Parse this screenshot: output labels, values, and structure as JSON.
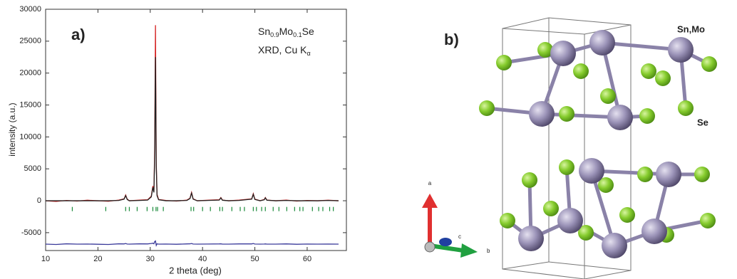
{
  "chart_data": {
    "type": "line",
    "panel_label": "a)",
    "xlabel": "2 theta (deg)",
    "ylabel": "intensity (a.u.)",
    "annotation_lines": [
      [
        {
          "text": "Sn"
        },
        {
          "text": "0.9",
          "sub": true
        },
        {
          "text": "Mo"
        },
        {
          "text": "0.1",
          "sub": true
        },
        {
          "text": "Se"
        }
      ],
      [
        {
          "text": "XRD, Cu K"
        },
        {
          "text": "α",
          "sub": true
        }
      ]
    ],
    "xlim": [
      10,
      67.5
    ],
    "ylim": [
      -7800,
      30000
    ],
    "xticks": [
      10,
      20,
      30,
      40,
      50,
      60
    ],
    "yticks": [
      -5000,
      0,
      5000,
      10000,
      15000,
      20000,
      25000,
      30000
    ],
    "grid": false,
    "x": [
      10,
      12,
      14,
      16,
      18,
      20,
      22,
      24,
      25,
      25.3,
      25.6,
      26,
      28,
      29.5,
      30.2,
      30.5,
      30.7,
      30.85,
      31.0,
      31.15,
      31.3,
      31.6,
      33,
      35,
      37,
      37.6,
      37.9,
      38.2,
      39,
      41,
      43.2,
      43.5,
      43.8,
      45,
      47,
      49.4,
      49.7,
      50,
      51,
      51.8,
      52,
      52.3,
      54,
      56,
      58,
      60,
      62,
      64,
      66
    ],
    "series": [
      {
        "color": "#d42020",
        "values": [
          0,
          -100,
          50,
          -50,
          80,
          0,
          -80,
          100,
          300,
          900,
          250,
          0,
          100,
          150,
          700,
          2300,
          1500,
          8000,
          27500,
          6000,
          1000,
          200,
          50,
          -50,
          100,
          400,
          1300,
          300,
          0,
          80,
          150,
          500,
          100,
          0,
          100,
          300,
          1100,
          250,
          0,
          200,
          500,
          100,
          0,
          100,
          -50,
          50,
          0,
          80,
          0
        ]
      },
      {
        "color": "#222222",
        "values": [
          0,
          0,
          0,
          0,
          0,
          0,
          0,
          50,
          250,
          800,
          200,
          0,
          50,
          100,
          600,
          2100,
          1300,
          7000,
          22500,
          5500,
          800,
          150,
          0,
          0,
          50,
          350,
          1200,
          250,
          0,
          50,
          100,
          450,
          80,
          0,
          50,
          250,
          1000,
          200,
          0,
          150,
          450,
          80,
          0,
          50,
          0,
          0,
          0,
          50,
          0
        ]
      },
      {
        "color": "#3a3a9a",
        "values": [
          -6800,
          -6850,
          -6750,
          -6800,
          -6780,
          -6820,
          -6850,
          -6750,
          -6760,
          -6700,
          -6780,
          -6800,
          -6750,
          -6760,
          -6700,
          -6650,
          -6750,
          -6400,
          -6300,
          -7000,
          -6750,
          -6800,
          -6780,
          -6820,
          -6760,
          -6750,
          -6700,
          -6780,
          -6800,
          -6780,
          -6760,
          -6750,
          -6800,
          -6800,
          -6760,
          -6760,
          -6700,
          -6780,
          -6800,
          -6780,
          -6760,
          -6800,
          -6800,
          -6760,
          -6820,
          -6780,
          -6800,
          -6780,
          -6800
        ]
      }
    ],
    "reflections": {
      "color": "#1a8a3a",
      "x": [
        15.1,
        21.5,
        25.3,
        26.0,
        27.5,
        29.4,
        30.5,
        31.1,
        31.4,
        32.5,
        37.8,
        38.3,
        40.0,
        41.5,
        43.3,
        43.8,
        45.6,
        47.2,
        48.0,
        49.7,
        50.3,
        51.3,
        52.0,
        53.5,
        54.6,
        56.1,
        57.6,
        58.6,
        59.2,
        61.0,
        62.2,
        63.0,
        64.3,
        65.0
      ],
      "y": -1300
    }
  },
  "structure": {
    "panel_label": "b)",
    "cation_label": "Sn,Mo",
    "anion_label": "Se",
    "axis_a": "a",
    "axis_b": "b",
    "axis_c": "c"
  }
}
